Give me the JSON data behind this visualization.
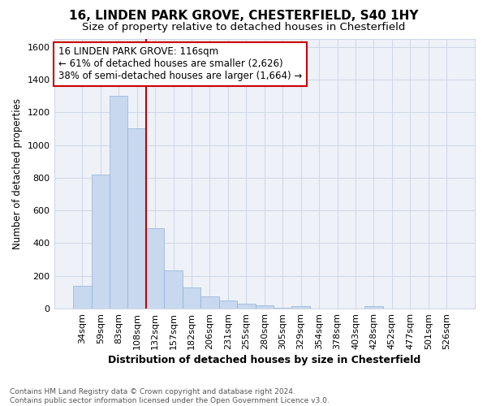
{
  "title": "16, LINDEN PARK GROVE, CHESTERFIELD, S40 1HY",
  "subtitle": "Size of property relative to detached houses in Chesterfield",
  "xlabel": "Distribution of detached houses by size in Chesterfield",
  "ylabel": "Number of detached properties",
  "footer_line1": "Contains HM Land Registry data © Crown copyright and database right 2024.",
  "footer_line2": "Contains public sector information licensed under the Open Government Licence v3.0.",
  "annotation_line1": "16 LINDEN PARK GROVE: 116sqm",
  "annotation_line2": "← 61% of detached houses are smaller (2,626)",
  "annotation_line3": "38% of semi-detached houses are larger (1,664) →",
  "categories": [
    "34sqm",
    "59sqm",
    "83sqm",
    "108sqm",
    "132sqm",
    "157sqm",
    "182sqm",
    "206sqm",
    "231sqm",
    "255sqm",
    "280sqm",
    "305sqm",
    "329sqm",
    "354sqm",
    "378sqm",
    "403sqm",
    "428sqm",
    "452sqm",
    "477sqm",
    "501sqm",
    "526sqm"
  ],
  "values": [
    140,
    820,
    1300,
    1100,
    490,
    235,
    130,
    75,
    50,
    30,
    20,
    5,
    15,
    0,
    0,
    0,
    15,
    0,
    0,
    0,
    0
  ],
  "bar_color": "#c8d8ee",
  "bar_edge_color": "#90b0d8",
  "highlight_color": "#c00000",
  "red_line_x": 3.5,
  "ylim": [
    0,
    1650
  ],
  "yticks": [
    0,
    200,
    400,
    600,
    800,
    1000,
    1200,
    1400,
    1600
  ],
  "grid_color": "#d0d8e8",
  "background_color": "#ffffff",
  "plot_bg_color": "#eef2f8",
  "title_fontsize": 11,
  "subtitle_fontsize": 9.5,
  "annotation_box_color": "#cc0000",
  "annotation_fill": "#ffffff"
}
